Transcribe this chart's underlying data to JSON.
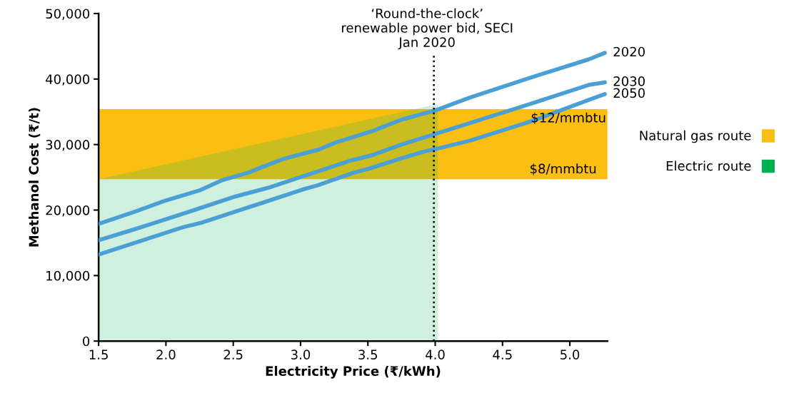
{
  "chart_data": {
    "type": "line",
    "xlabel": "Electricity Price (₹/kWh)",
    "ylabel": "Methanol Cost (₹/t)",
    "xlim": [
      1.5,
      5.28
    ],
    "xticks": [
      {
        "value": 1.5,
        "label": "1.5"
      },
      {
        "value": 2.0,
        "label": "2.0"
      },
      {
        "value": 2.5,
        "label": "2.5"
      },
      {
        "value": 3.0,
        "label": "3.0"
      },
      {
        "value": 3.5,
        "label": "3.5"
      },
      {
        "value": 4.0,
        "label": "4.0"
      },
      {
        "value": 4.5,
        "label": "4.5"
      },
      {
        "value": 5.0,
        "label": "5.0"
      }
    ],
    "ylim": [
      0,
      50000
    ],
    "yticks": [
      {
        "value": 0,
        "label": "0"
      },
      {
        "value": 10000,
        "label": "10,000"
      },
      {
        "value": 20000,
        "label": "20,000"
      },
      {
        "value": 30000,
        "label": "30,000"
      },
      {
        "value": 40000,
        "label": "40,000"
      },
      {
        "value": 50000,
        "label": "50,000"
      }
    ],
    "series": [
      {
        "name": "2020",
        "color": "#4a9fd4",
        "x": [
          1.5,
          1.76,
          1.99,
          2.25,
          2.41,
          2.61,
          2.87,
          3.13,
          3.26,
          3.54,
          3.75,
          4.0,
          4.26,
          4.72,
          5.14,
          5.26
        ],
        "values": [
          17900,
          19700,
          21400,
          23000,
          24500,
          25700,
          27800,
          29200,
          30300,
          32100,
          33800,
          35200,
          37200,
          40300,
          43000,
          44000
        ]
      },
      {
        "name": "2030",
        "color": "#4a9fd4",
        "x": [
          1.5,
          1.74,
          1.88,
          2.21,
          2.52,
          2.76,
          3.01,
          3.13,
          3.38,
          3.52,
          3.75,
          4.0,
          4.26,
          4.72,
          5.14,
          5.26
        ],
        "values": [
          15400,
          16900,
          17800,
          20000,
          22100,
          23400,
          25100,
          25900,
          27600,
          28300,
          30000,
          31600,
          33300,
          36300,
          39100,
          39500
        ]
      },
      {
        "name": "2050",
        "color": "#4a9fd4",
        "x": [
          1.5,
          1.77,
          2.13,
          2.27,
          2.52,
          2.73,
          3.01,
          3.13,
          3.38,
          3.52,
          3.75,
          3.93,
          4.0,
          4.26,
          4.72,
          5.14,
          5.26
        ],
        "values": [
          13200,
          15000,
          17400,
          18100,
          19800,
          21200,
          23100,
          23800,
          25600,
          26400,
          27900,
          29000,
          29300,
          30600,
          33600,
          36800,
          37700
        ]
      },
      {
        "name": "Electric route",
        "type": "area",
        "color": "#00b050",
        "x": [
          1.5,
          4.02
        ],
        "values": [
          24700,
          36200
        ]
      }
    ],
    "bands": [
      {
        "axis": "y",
        "from": 24700,
        "to": 35400,
        "label": "Natural gas route",
        "color": "#fbbf14"
      }
    ],
    "ref_lines": [
      {
        "axis": "x",
        "value": 3.99,
        "label": "‘Round-the-clock’\nrenewable power bid, SECI\nJan 2020",
        "line_style": "dotted",
        "color": "#000000"
      }
    ],
    "annotations": [
      {
        "text": "$12/mmbtu",
        "x": 5.27,
        "y": 35400
      },
      {
        "text": "$8/mmbtu",
        "x": 5.2,
        "y": 24700
      }
    ],
    "legend": "right",
    "grid": false,
    "marker": "none",
    "line_style": "solid"
  }
}
